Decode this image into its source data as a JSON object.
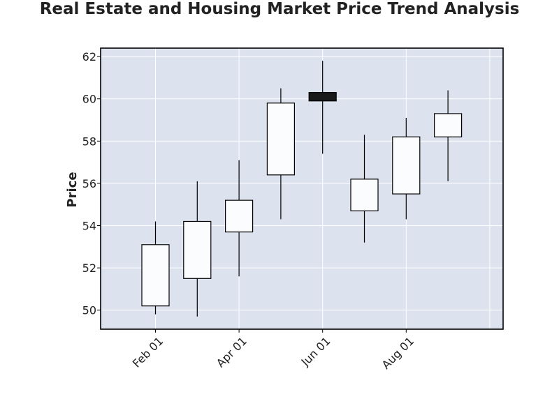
{
  "chart_data": {
    "type": "candlestick",
    "title": "Real Estate and Housing Market Price Trend Analysis",
    "xlabel": "",
    "ylabel": "Price",
    "ylim": [
      49.1,
      62.4
    ],
    "y_ticks": [
      50,
      52,
      54,
      56,
      58,
      60,
      62
    ],
    "x_ticks": [
      {
        "label": "Feb 01",
        "index": 0
      },
      {
        "label": "Apr 01",
        "index": 2
      },
      {
        "label": "Jun 01",
        "index": 4
      },
      {
        "label": "Aug 01",
        "index": 6
      }
    ],
    "grid": true,
    "candles": [
      {
        "open": 50.2,
        "high": 54.2,
        "low": 49.8,
        "close": 53.1
      },
      {
        "open": 51.5,
        "high": 56.1,
        "low": 49.7,
        "close": 54.2
      },
      {
        "open": 53.7,
        "high": 57.1,
        "low": 51.6,
        "close": 55.2
      },
      {
        "open": 56.4,
        "high": 60.5,
        "low": 54.3,
        "close": 59.8
      },
      {
        "open": 60.3,
        "high": 61.8,
        "low": 57.4,
        "close": 59.9
      },
      {
        "open": 54.7,
        "high": 58.3,
        "low": 53.2,
        "close": 56.2
      },
      {
        "open": 55.5,
        "high": 59.1,
        "low": 54.3,
        "close": 58.2
      },
      {
        "open": 58.2,
        "high": 60.4,
        "low": 56.1,
        "close": 59.3
      }
    ],
    "colors": {
      "up_fill": "#fbfcfe",
      "down_fill": "#1a1a1a",
      "edge": "#000000",
      "plot_background": "#dde2ef",
      "grid": "#ffffff"
    }
  }
}
